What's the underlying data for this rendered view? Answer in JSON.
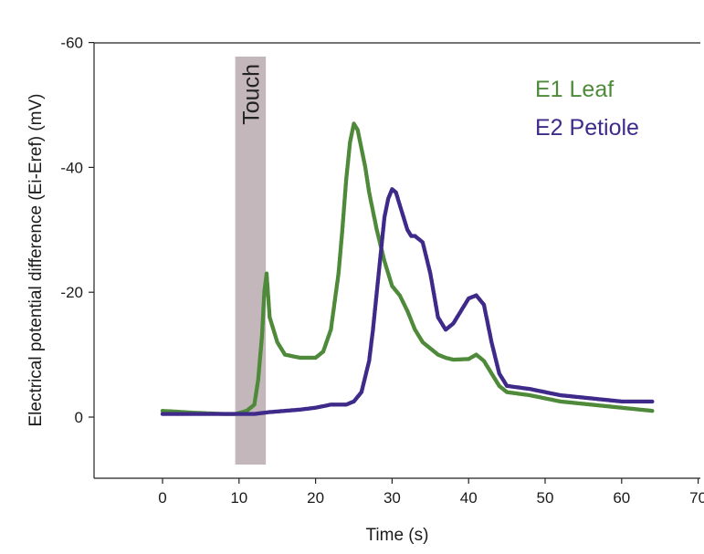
{
  "chart_data": {
    "type": "scatter",
    "xlabel": "Time (s)",
    "ylabel": "Electrical potential difference (Ei-Eref) (mV)",
    "xlim": [
      -10,
      70
    ],
    "ylim": [
      -60,
      10
    ],
    "y_axis_inverted": true,
    "xticks": [
      0,
      10,
      20,
      30,
      40,
      50,
      60,
      70
    ],
    "xtick_labels": [
      "0",
      "10",
      "20",
      "30",
      "40",
      "50",
      "60",
      "70"
    ],
    "yticks": [
      -60,
      -40,
      -20,
      0
    ],
    "ytick_labels": [
      "-60",
      "-40",
      "-20",
      "0"
    ],
    "grid": false,
    "legend_position": "top-right",
    "annotation": {
      "label": "Touch",
      "x_range": [
        9.5,
        13.5
      ],
      "color": "#b8aab0"
    },
    "series": [
      {
        "name": "E1 Leaf",
        "color": "#4e8a3a",
        "x": [
          0,
          4,
          8,
          9.5,
          11,
          12,
          12.5,
          13,
          13.3,
          13.6,
          14,
          15,
          16,
          18,
          20,
          21,
          22,
          23,
          23.5,
          24,
          24.5,
          25,
          25.5,
          26,
          26.5,
          27,
          28,
          29,
          30,
          31,
          32,
          33,
          34,
          35,
          36,
          37,
          38,
          40,
          41,
          42,
          43,
          44,
          45,
          48,
          52,
          56,
          60,
          64
        ],
        "values": [
          -1,
          -0.7,
          -0.5,
          -0.5,
          -1,
          -2,
          -6,
          -13,
          -20,
          -23,
          -16,
          -12,
          -10,
          -9.5,
          -9.5,
          -10.5,
          -14,
          -23,
          -30,
          -38,
          -44,
          -47,
          -46,
          -43,
          -40,
          -36,
          -30,
          -25,
          -21,
          -19.5,
          -17,
          -14,
          -12,
          -11,
          -10,
          -9.5,
          -9.2,
          -9.3,
          -10,
          -9,
          -7,
          -5,
          -4,
          -3.5,
          -2.5,
          -2,
          -1.5,
          -1
        ]
      },
      {
        "name": "E2 Petiole",
        "color": "#3f2a8a",
        "x": [
          0,
          4,
          8,
          10,
          12,
          14,
          16,
          18,
          20,
          22,
          24,
          25,
          26,
          27,
          27.5,
          28,
          28.5,
          29,
          29.5,
          30,
          30.5,
          31,
          32,
          32.5,
          33,
          34,
          35,
          36,
          37,
          38,
          39,
          40,
          41,
          42,
          43,
          44,
          45,
          48,
          52,
          56,
          60,
          64
        ],
        "values": [
          -0.5,
          -0.5,
          -0.5,
          -0.5,
          -0.5,
          -0.8,
          -1,
          -1.2,
          -1.5,
          -2,
          -2,
          -2.5,
          -4,
          -9,
          -14,
          -20,
          -26,
          -32,
          -35,
          -36.5,
          -36,
          -34,
          -30,
          -29,
          -29,
          -28,
          -23,
          -16,
          -14,
          -15,
          -17,
          -19,
          -19.5,
          -18,
          -12,
          -7,
          -5,
          -4.5,
          -3.5,
          -3,
          -2.5,
          -2.5
        ]
      }
    ]
  },
  "icons": {
    "touch_band": "shaded-rectangle"
  }
}
